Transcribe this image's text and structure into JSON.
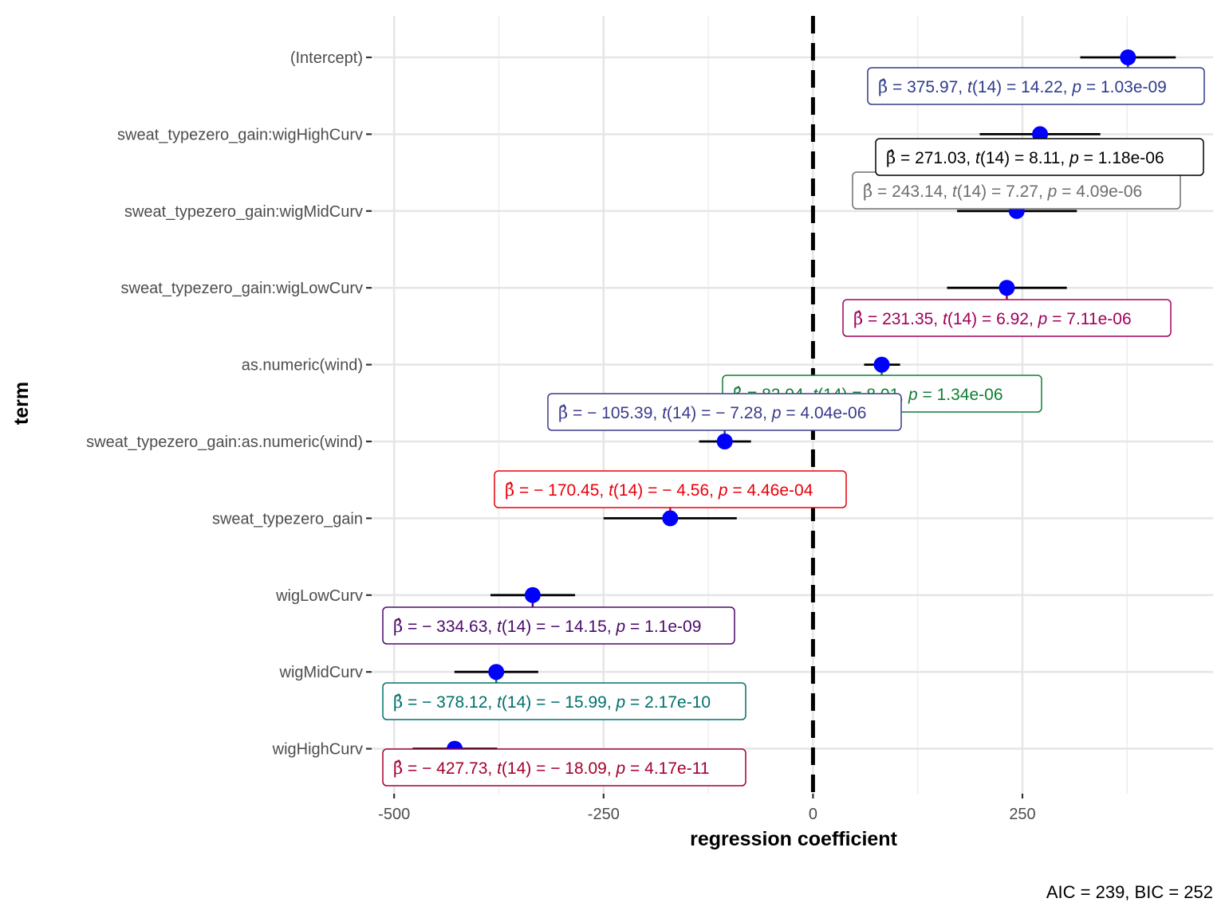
{
  "chart_data": {
    "type": "scatter",
    "subtype": "coefficient-plot (point estimate with confidence interval)",
    "ylabel": "term",
    "xlabel": "regression coefficient",
    "caption": "AIC = 239, BIC = 252",
    "xlim": [
      -505,
      480
    ],
    "x_ticks": [
      -500,
      -250,
      0,
      250
    ],
    "x_tick_labels": [
      "-500",
      "-250",
      "0",
      "250"
    ],
    "reference_line": 0,
    "grid": true,
    "point_color": "#0000FF",
    "terms": [
      {
        "term": "(Intercept)",
        "estimate": 375.97,
        "conf_low": 319,
        "conf_high": 433,
        "color": "#2E3C8C",
        "beta": "375.97",
        "t": "14.22",
        "df": "14",
        "p": "1.03e-09"
      },
      {
        "term": "sweat_typezero_gain:wigHighCurv",
        "estimate": 271.03,
        "conf_low": 199,
        "conf_high": 343,
        "color": "#000000",
        "beta": "271.03",
        "t": "8.11",
        "df": "14",
        "p": "1.18e-06"
      },
      {
        "term": "sweat_typezero_gain:wigMidCurv",
        "estimate": 243.14,
        "conf_low": 172,
        "conf_high": 315,
        "color": "#6E6E6E",
        "beta": "243.14",
        "t": "7.27",
        "df": "14",
        "p": "4.09e-06"
      },
      {
        "term": "sweat_typezero_gain:wigLowCurv",
        "estimate": 231.35,
        "conf_low": 160,
        "conf_high": 303,
        "color": "#A0005A",
        "beta": "231.35",
        "t": "6.92",
        "df": "14",
        "p": "7.11e-06"
      },
      {
        "term": "as.numeric(wind)",
        "estimate": 82.04,
        "conf_low": 61,
        "conf_high": 104,
        "color": "#0E7E33",
        "beta": "82.04",
        "t": "8.01",
        "df": "14",
        "p": "1.34e-06"
      },
      {
        "term": "sweat_typezero_gain:as.numeric(wind)",
        "estimate": -105.39,
        "conf_low": -136,
        "conf_high": -74,
        "color": "#3C3A8C",
        "beta": "− 105.39",
        "t": "− 7.28",
        "df": "14",
        "p": "4.04e-06"
      },
      {
        "term": "sweat_typezero_gain",
        "estimate": -170.45,
        "conf_low": -250,
        "conf_high": -91,
        "color": "#E8000B",
        "beta": "− 170.45",
        "t": "− 4.56",
        "df": "14",
        "p": "4.46e-04"
      },
      {
        "term": "wigLowCurv",
        "estimate": -334.63,
        "conf_low": -385,
        "conf_high": -284,
        "color": "#4B0A6B",
        "beta": "− 334.63",
        "t": "− 14.15",
        "df": "14",
        "p": "1.1e-09"
      },
      {
        "term": "wigMidCurv",
        "estimate": -378.12,
        "conf_low": -428,
        "conf_high": -328,
        "color": "#00706B",
        "beta": "− 378.12",
        "t": "− 15.99",
        "df": "14",
        "p": "2.17e-10"
      },
      {
        "term": "wigHighCurv",
        "estimate": -427.73,
        "conf_low": -478,
        "conf_high": -377,
        "color": "#A5002E",
        "beta": "− 427.73",
        "t": "− 18.09",
        "df": "14",
        "p": "4.17e-11"
      }
    ]
  }
}
